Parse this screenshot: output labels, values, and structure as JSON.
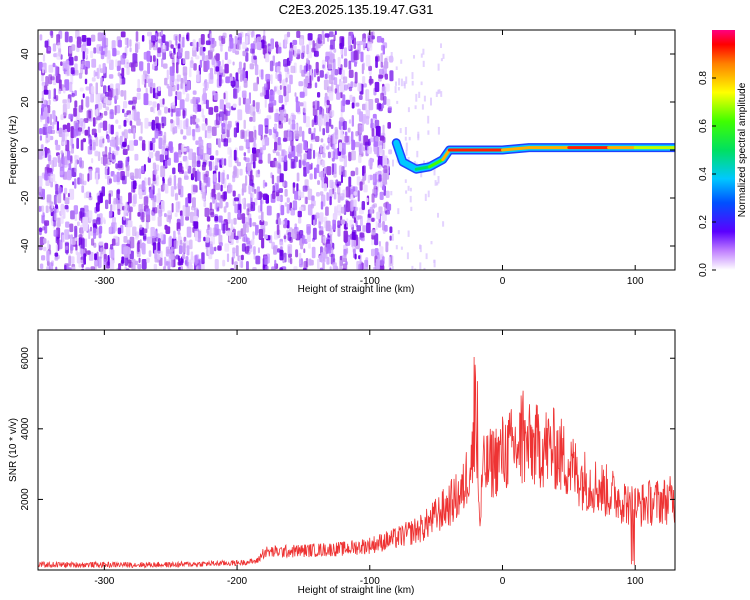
{
  "title": "C2E3.2025.135.19.47.G31",
  "chart_data": [
    {
      "type": "heatmap",
      "xlabel": "Height of straight line (km)",
      "ylabel": "Frequency (Hz)",
      "xlim": [
        -350,
        130
      ],
      "ylim": [
        -50,
        50
      ],
      "xticks": [
        -300,
        -200,
        -100,
        0,
        100
      ],
      "yticks": [
        -40,
        -20,
        0,
        20,
        40
      ],
      "colorbar": {
        "label": "Normalized spectral amplitude",
        "range": [
          0,
          1
        ],
        "ticks": [
          0.0,
          0.2,
          0.4,
          0.6,
          0.8
        ]
      },
      "signal_line": {
        "description_points_x": [
          -80,
          -75,
          -65,
          -55,
          -45,
          -40,
          -20,
          0,
          20,
          50,
          80,
          100,
          130
        ],
        "frequency_hz": [
          3,
          -5,
          -8,
          -7,
          -4,
          0,
          0,
          0,
          1,
          1,
          1,
          1,
          1
        ],
        "amplitude": [
          0.2,
          0.25,
          0.3,
          0.35,
          0.6,
          0.9,
          0.95,
          0.85,
          0.75,
          0.8,
          0.9,
          0.75,
          0.6
        ]
      },
      "noise_region_x": [
        -350,
        -85
      ]
    },
    {
      "type": "line",
      "xlabel": "Height of straight line (km)",
      "ylabel": "SNR (10 * v/v)",
      "xlim": [
        -350,
        130
      ],
      "ylim": [
        0,
        6800
      ],
      "xticks": [
        -300,
        -200,
        -100,
        0,
        100
      ],
      "yticks": [
        2000,
        4000,
        6000
      ],
      "series_color": "#ee3333",
      "x": [
        -350,
        -300,
        -250,
        -200,
        -185,
        -180,
        -150,
        -120,
        -100,
        -80,
        -60,
        -45,
        -30,
        -25,
        -20,
        -17,
        -15,
        0,
        10,
        20,
        30,
        40,
        50,
        60,
        80,
        100,
        110,
        130
      ],
      "y": [
        150,
        150,
        150,
        200,
        250,
        500,
        550,
        600,
        700,
        900,
        1200,
        1700,
        2200,
        3000,
        3500,
        1200,
        2800,
        3300,
        3500,
        3500,
        3500,
        3400,
        3000,
        2600,
        2200,
        1800,
        1900,
        2000
      ]
    }
  ],
  "colors": {
    "noise_purple": "#8a2be2",
    "snr_red": "#ee3333"
  }
}
